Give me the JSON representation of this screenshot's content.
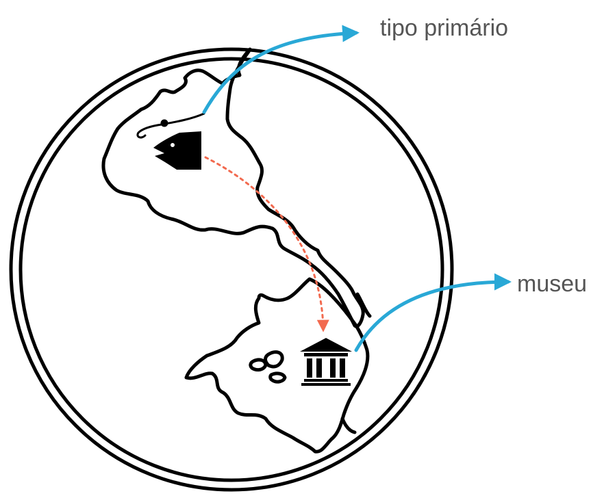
{
  "labels": {
    "primary_type": "tipo primário",
    "museum": "museu"
  },
  "icons": {
    "origin": "fish-icon",
    "destination": "museum-icon",
    "tool": "fishing-hook-icon",
    "background": "globe-map"
  },
  "colors": {
    "callout_arrow": "#29a8d6",
    "route_arrow": "#f26a4f",
    "outline": "#000000",
    "label_text": "#555555"
  }
}
